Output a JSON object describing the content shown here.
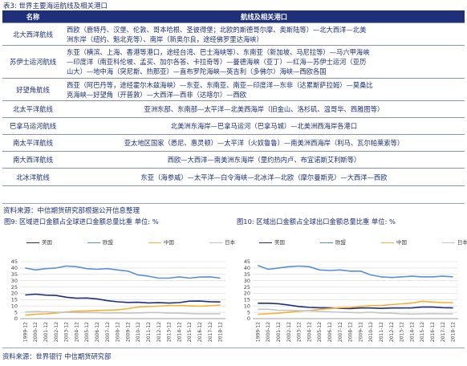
{
  "caption": "表3: 世界主要海运航线及相关港口",
  "table": {
    "headers": [
      "名称",
      "航线及相关港口"
    ],
    "rows": [
      {
        "name": "北大西洋航线",
        "ports": [
          "西欧（鹿特丹、汉堡、伦敦、哥本哈根、圣彼得堡；北欧的斯德哥尔摩、奥斯陆等）—北大西洋—北美",
          "洲东岸（纽约、魁北克等）、南岸（新奥尔良，途经佛罗里达海峡）"
        ]
      },
      {
        "name": "苏伊士运河航线",
        "ports": [
          "东亚（横滨、上海、香港等港口，途经台湾、巴士海峡等）、东南亚（新加坡、马尼拉等）—马六甲海峡",
          "—印度洋（南亚科伦坡、孟买、加尔各答、卡拉奇等）—曼德海峡（亚丁）—红海—苏伊士运河（亚历",
          "山大）—地中海（突尼斯、热那亚）—直布罗陀海峡—英吉利（多佛尔）海峡—西欧各国"
        ]
      },
      {
        "name": "好望角航线",
        "ports": [
          "西亚（阿巴丹等，途经霍尔木兹海峡）—东亚、东南亚、南亚—印度洋—东非（达累斯萨拉姆）—莫桑比",
          "克海峡—好望角（开普敦）—大西洋—西非（达喀尔）—西欧"
        ]
      },
      {
        "name": "北太平洋航线",
        "ports": [
          "亚洲东部、东南部—太平洋—北美西海岸（旧金山、洛杉矶、温哥华、西雅图等）"
        ]
      },
      {
        "name": "巴拿马运河航线",
        "ports": [
          "北美洲东海岸—巴拿马运河（巴拿马城）—北美洲西海岸各港口"
        ]
      },
      {
        "name": "南太平洋航线",
        "ports": [
          "亚太地区国家（悉尼、惠灵顿）—太平洋（火奴鲁鲁）—南美洲西海岸（利马、瓦尔帕莱索等）"
        ]
      },
      {
        "name": "南大西洋航线",
        "ports": [
          "西欧—大西洋—南美洲东海岸（里约热内卢、布宜诺斯艾利斯等）"
        ]
      },
      {
        "name": "北冰洋航线",
        "ports": [
          "东亚（海参威）—太平洋—白令海峡—北冰洋—北欧（摩尔曼斯克）—大西洋—西欧"
        ]
      }
    ]
  },
  "source1": "资料来源：中信期货研究部根据公开信息整理",
  "source2": "资料来源：世界银行  中信期货研究部",
  "colors": {
    "us": "#1f2f7a",
    "eu": "#5b8fd6",
    "cn": "#f2b233",
    "jp": "#c4c4c4",
    "brand": "#1f2f7a"
  },
  "chart_data": [
    {
      "type": "line",
      "title": "图9: 区域进口金额占全球进口金额总量比重    单位: %",
      "x": [
        "1999-12",
        "2000-12",
        "2001-12",
        "2002-12",
        "2003-12",
        "2004-12",
        "2005-12",
        "2006-12",
        "2007-12",
        "2008-12",
        "2009-12",
        "2010-12",
        "2011-12",
        "2012-12",
        "2013-12",
        "2014-12",
        "2015-12",
        "2016-12",
        "2017-12",
        "2018-12"
      ],
      "ylim": [
        0,
        45
      ],
      "yticks": [
        0,
        5,
        10,
        15,
        20,
        25,
        30,
        35,
        40,
        45
      ],
      "legend": "top",
      "grid": true,
      "series": [
        {
          "name": "美国",
          "color": "#1f2f7a",
          "values": [
            18.7,
            19.3,
            18.6,
            18.3,
            16.9,
            16.1,
            16.3,
            15.6,
            14.2,
            13.3,
            12.8,
            12.9,
            12.4,
            12.6,
            12.3,
            12.7,
            13.8,
            13.9,
            13.4,
            13.2
          ]
        },
        {
          "name": "欧盟",
          "color": "#5b8fd6",
          "values": [
            40.0,
            38.5,
            39.5,
            40.0,
            41.5,
            41.0,
            39.5,
            39.0,
            39.5,
            38.5,
            37.5,
            34.5,
            33.5,
            32.0,
            32.0,
            33.0,
            32.0,
            32.8,
            33.0,
            32.0
          ]
        },
        {
          "name": "中国",
          "color": "#f2b233",
          "values": [
            2.8,
            3.4,
            3.8,
            4.4,
            5.3,
            5.9,
            6.1,
            6.4,
            6.7,
            6.9,
            7.9,
            9.1,
            9.5,
            9.8,
            10.3,
            10.3,
            10.1,
            9.8,
            10.2,
            10.8
          ]
        },
        {
          "name": "日本",
          "color": "#c4c4c4",
          "values": [
            5.2,
            5.6,
            5.4,
            5.0,
            5.0,
            4.8,
            4.8,
            4.7,
            4.4,
            4.6,
            4.4,
            4.5,
            4.8,
            4.8,
            4.4,
            4.3,
            4.0,
            3.8,
            3.8,
            3.8
          ]
        }
      ]
    },
    {
      "type": "line",
      "title": "图10: 区域出口金额占全球出口金额总量比重    单位: %",
      "x": [
        "1999-12",
        "2000-12",
        "2001-12",
        "2002-12",
        "2003-12",
        "2004-12",
        "2005-12",
        "2006-12",
        "2007-12",
        "2008-12",
        "2009-12",
        "2010-12",
        "2011-12",
        "2012-12",
        "2013-12",
        "2014-12",
        "2015-12",
        "2016-12",
        "2017-12",
        "2018-12"
      ],
      "ylim": [
        0,
        45
      ],
      "yticks": [
        0,
        5,
        10,
        15,
        20,
        25,
        30,
        35,
        40,
        45
      ],
      "legend": "top",
      "grid": true,
      "series": [
        {
          "name": "美国",
          "color": "#1f2f7a",
          "values": [
            12.2,
            12.2,
            11.8,
            10.7,
            9.6,
            8.9,
            8.6,
            8.5,
            8.2,
            8.0,
            8.4,
            8.4,
            8.1,
            8.4,
            8.4,
            8.5,
            9.1,
            9.1,
            8.7,
            8.5
          ]
        },
        {
          "name": "欧盟",
          "color": "#5b8fd6",
          "values": [
            42.0,
            39.0,
            40.0,
            41.0,
            41.5,
            41.0,
            38.5,
            38.0,
            38.5,
            37.5,
            37.5,
            34.5,
            33.0,
            32.5,
            33.0,
            33.5,
            33.0,
            33.0,
            33.5,
            33.0
          ]
        },
        {
          "name": "中国",
          "color": "#f2b233",
          "values": [
            3.4,
            3.9,
            4.3,
            5.0,
            5.8,
            6.4,
            7.3,
            8.0,
            8.7,
            8.9,
            9.6,
            10.3,
            10.4,
            11.1,
            11.7,
            12.3,
            13.7,
            13.1,
            12.7,
            12.7
          ]
        },
        {
          "name": "日本",
          "color": "#c4c4c4",
          "values": [
            7.4,
            7.4,
            6.6,
            6.5,
            6.3,
            6.2,
            5.7,
            5.4,
            5.1,
            4.9,
            4.6,
            5.1,
            4.5,
            4.3,
            3.8,
            3.6,
            3.8,
            4.0,
            3.8,
            3.8
          ]
        }
      ]
    }
  ]
}
